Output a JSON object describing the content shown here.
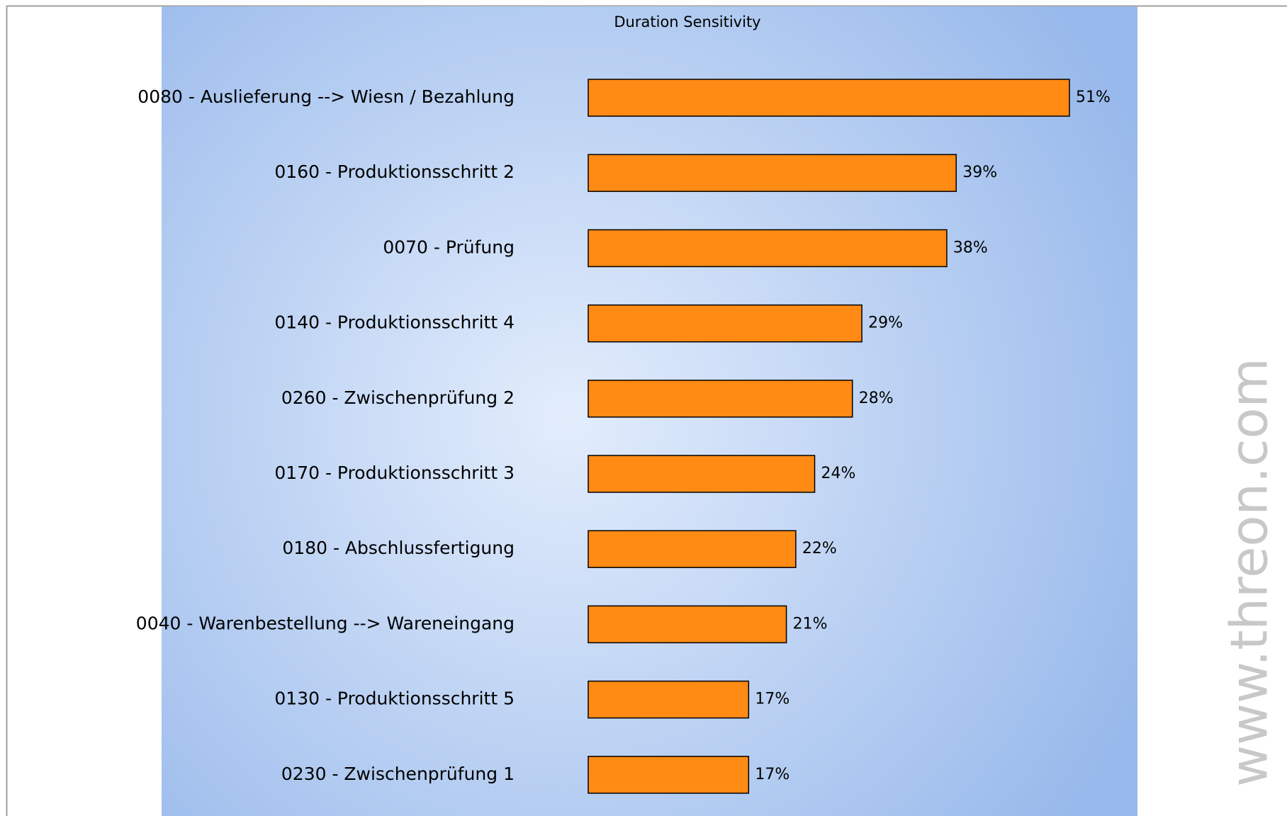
{
  "chart_data": {
    "type": "bar",
    "orientation": "horizontal",
    "title": "Duration Sensitivity",
    "categories": [
      "0080 - Auslieferung --> Wiesn / Bezahlung",
      "0160 - Produktionsschritt 2",
      "0070 - Prüfung",
      "0140 - Produktionsschritt 4",
      "0260 - Zwischenprüfung 2",
      "0170 - Produktionsschritt 3",
      "0180 - Abschlussfertigung",
      "0040 - Warenbestellung --> Wareneingang",
      "0130 - Produktionsschritt 5",
      "0230 - Zwischenprüfung 1"
    ],
    "values": [
      51,
      39,
      38,
      29,
      28,
      24,
      22,
      21,
      17,
      17
    ],
    "value_labels": [
      "51%",
      "39%",
      "38%",
      "29%",
      "28%",
      "24%",
      "22%",
      "21%",
      "17%",
      "17%"
    ],
    "color": "#ff8a14",
    "watermark": "www.threon.com"
  }
}
